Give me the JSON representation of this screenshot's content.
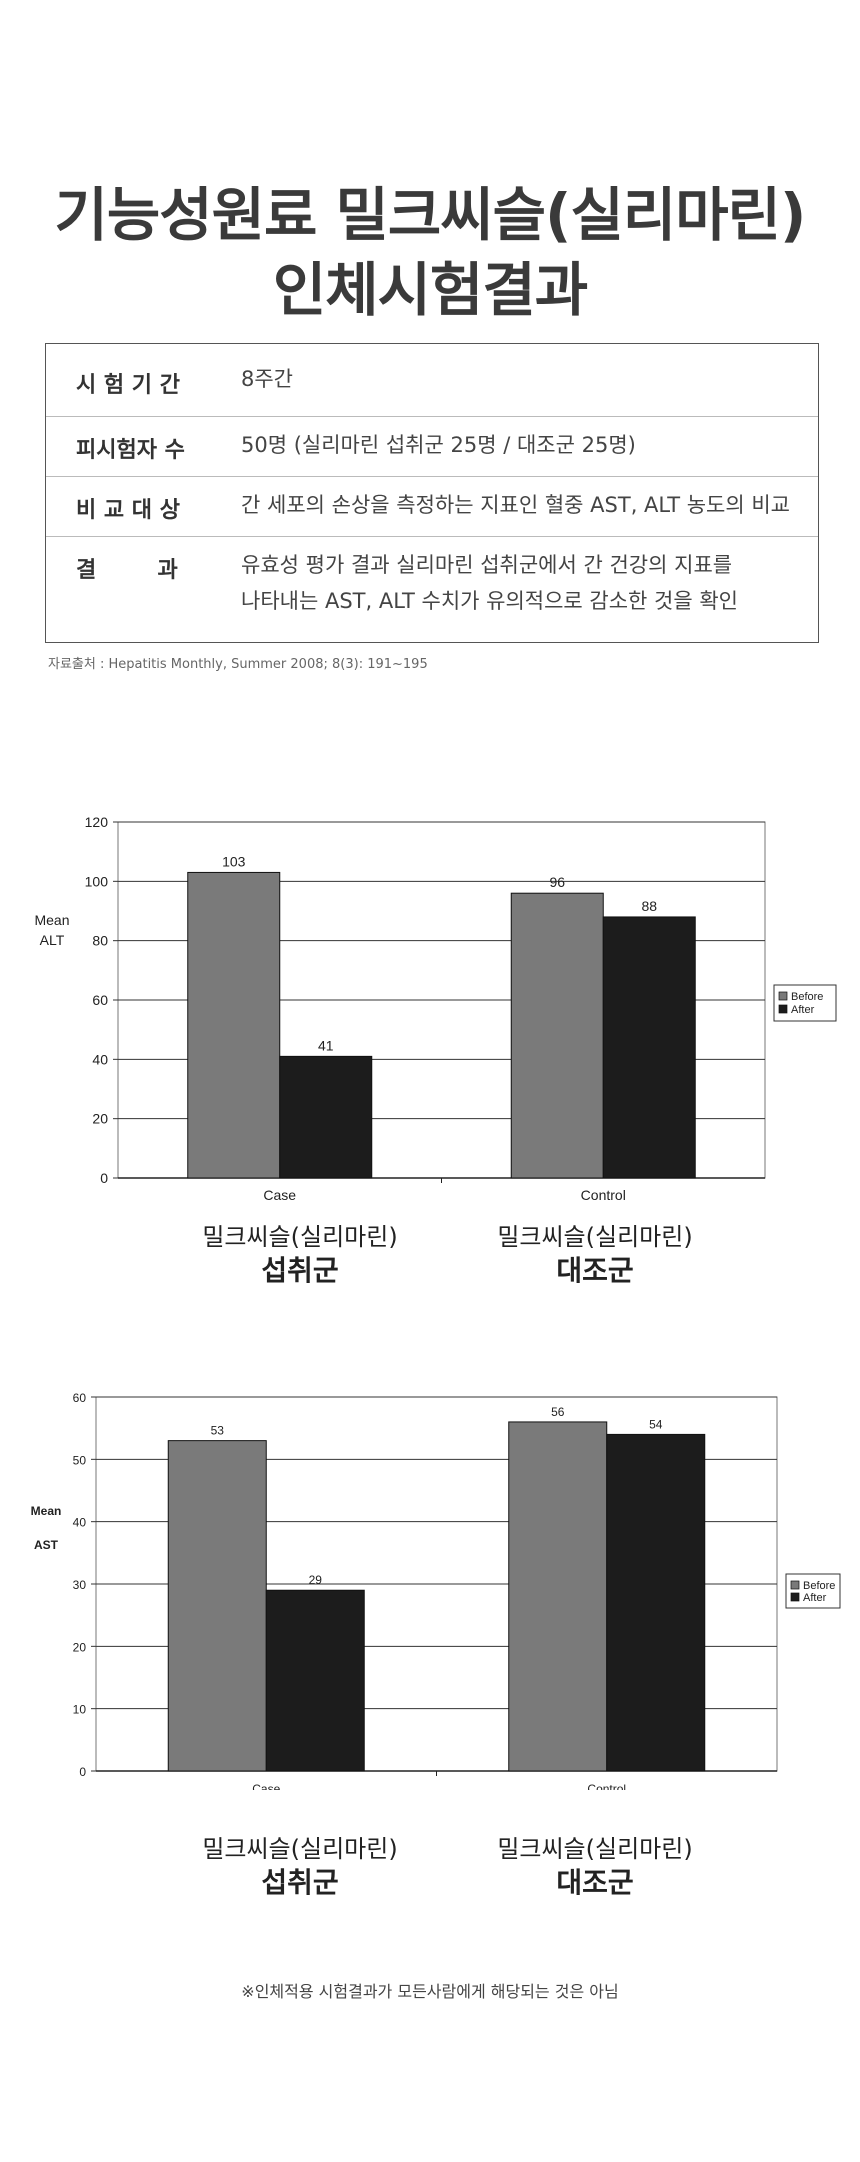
{
  "title": {
    "line1": "기능성원료 밀크씨슬(실리마린)",
    "line2": "인체시험결과"
  },
  "info_table": [
    {
      "label": "시 험 기 간",
      "value": [
        "8주간"
      ]
    },
    {
      "label": "피시험자 수",
      "value": [
        "50명 (실리마린 섭취군 25명 / 대조군 25명)"
      ]
    },
    {
      "label": "비 교 대 상",
      "value": [
        "간 세포의 손상을 측정하는 지표인 혈중 AST, ALT 농도의 비교"
      ]
    },
    {
      "label": "결        과",
      "value": [
        "유효성 평가 결과 실리마린 섭취군에서 간 건강의 지표를",
        "나타내는 AST, ALT 수치가 유의적으로 감소한 것을 확인"
      ]
    }
  ],
  "source": "자료출처 : Hepatitis Monthly, Summer 2008; 8(3): 191~195",
  "chart_data": [
    {
      "type": "bar",
      "categories": [
        "Case",
        "Control"
      ],
      "series": [
        {
          "name": "Before",
          "values": [
            103,
            96
          ],
          "color": "#7a7a7a"
        },
        {
          "name": "After",
          "values": [
            41,
            88
          ],
          "color": "#1c1c1c"
        }
      ],
      "ylabel_line1": "Mean",
      "ylabel_line2": "ALT",
      "ylim": [
        0,
        120
      ],
      "yticks": [
        0,
        20,
        40,
        60,
        80,
        100,
        120
      ],
      "grid": true,
      "legend": "right",
      "group_labels": [
        {
          "line1": "밀크씨슬(실리마린)",
          "line2": "섭취군"
        },
        {
          "line1": "밀크씨슬(실리마린)",
          "line2": "대조군"
        }
      ]
    },
    {
      "type": "bar",
      "categories": [
        "Case",
        "Control"
      ],
      "series": [
        {
          "name": "Before",
          "values": [
            53,
            56
          ],
          "color": "#7a7a7a"
        },
        {
          "name": "After",
          "values": [
            29,
            54
          ],
          "color": "#1c1c1c"
        }
      ],
      "ylabel_line1": "Mean",
      "ylabel_line2": "AST",
      "ylim": [
        0,
        60
      ],
      "yticks": [
        0,
        10,
        20,
        30,
        40,
        50,
        60
      ],
      "grid": true,
      "legend": "right",
      "group_labels": [
        {
          "line1": "밀크씨슬(실리마린)",
          "line2": "섭취군"
        },
        {
          "line1": "밀크씨슬(실리마린)",
          "line2": "대조군"
        }
      ]
    }
  ],
  "footnote": "※인체적용 시험결과가 모든사람에게 해당되는 것은 아님"
}
